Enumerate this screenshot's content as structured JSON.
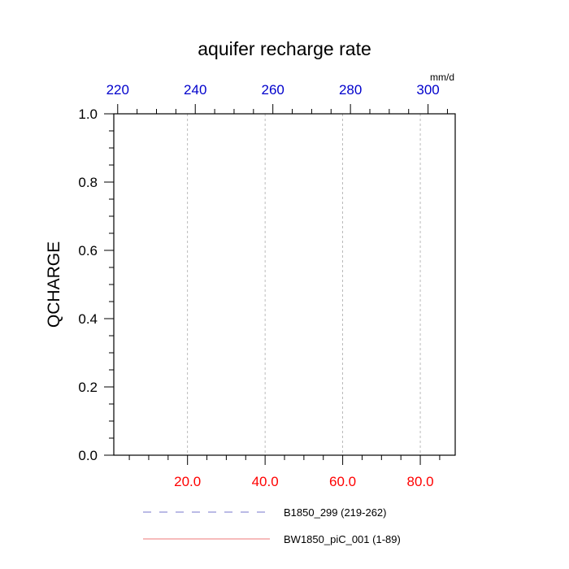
{
  "chart_data": {
    "type": "line",
    "title": "aquifer recharge rate",
    "units": "mm/d",
    "ylabel": "QCHARGE",
    "ylim": [
      0,
      1
    ],
    "y_ticks": [
      {
        "value": 0.0,
        "label": "0.0"
      },
      {
        "value": 0.2,
        "label": "0.2"
      },
      {
        "value": 0.4,
        "label": "0.4"
      },
      {
        "value": 0.6,
        "label": "0.6"
      },
      {
        "value": 0.8,
        "label": "0.8"
      },
      {
        "value": 1.0,
        "label": "1.0"
      }
    ],
    "bottom_axis": {
      "range": [
        1,
        89
      ],
      "color": "#ff0000",
      "ticks": [
        {
          "value": 20,
          "label": "20.0"
        },
        {
          "value": 40,
          "label": "40.0"
        },
        {
          "value": 60,
          "label": "60.0"
        },
        {
          "value": 80,
          "label": "80.0"
        }
      ]
    },
    "top_axis": {
      "range": [
        219,
        307
      ],
      "color": "#0000cc",
      "ticks": [
        {
          "value": 220,
          "label": "220"
        },
        {
          "value": 240,
          "label": "240"
        },
        {
          "value": 260,
          "label": "260"
        },
        {
          "value": 280,
          "label": "280"
        },
        {
          "value": 300,
          "label": "300"
        }
      ]
    },
    "grid": {
      "vertical": true,
      "horizontal": false
    },
    "legend": {
      "placement": "bottom"
    },
    "series": [
      {
        "name": "B1850_299 (219-262)",
        "axis": "top",
        "style": "dashed",
        "color": "#7777cc",
        "x": [
          219,
          262
        ],
        "y": [
          0.0,
          0.0
        ]
      },
      {
        "name": "BW1850_piC_001 (1-89)",
        "axis": "bottom",
        "style": "solid",
        "color": "#ee7777",
        "x": [
          1,
          89
        ],
        "y": [
          0.0,
          0.0
        ]
      }
    ]
  }
}
